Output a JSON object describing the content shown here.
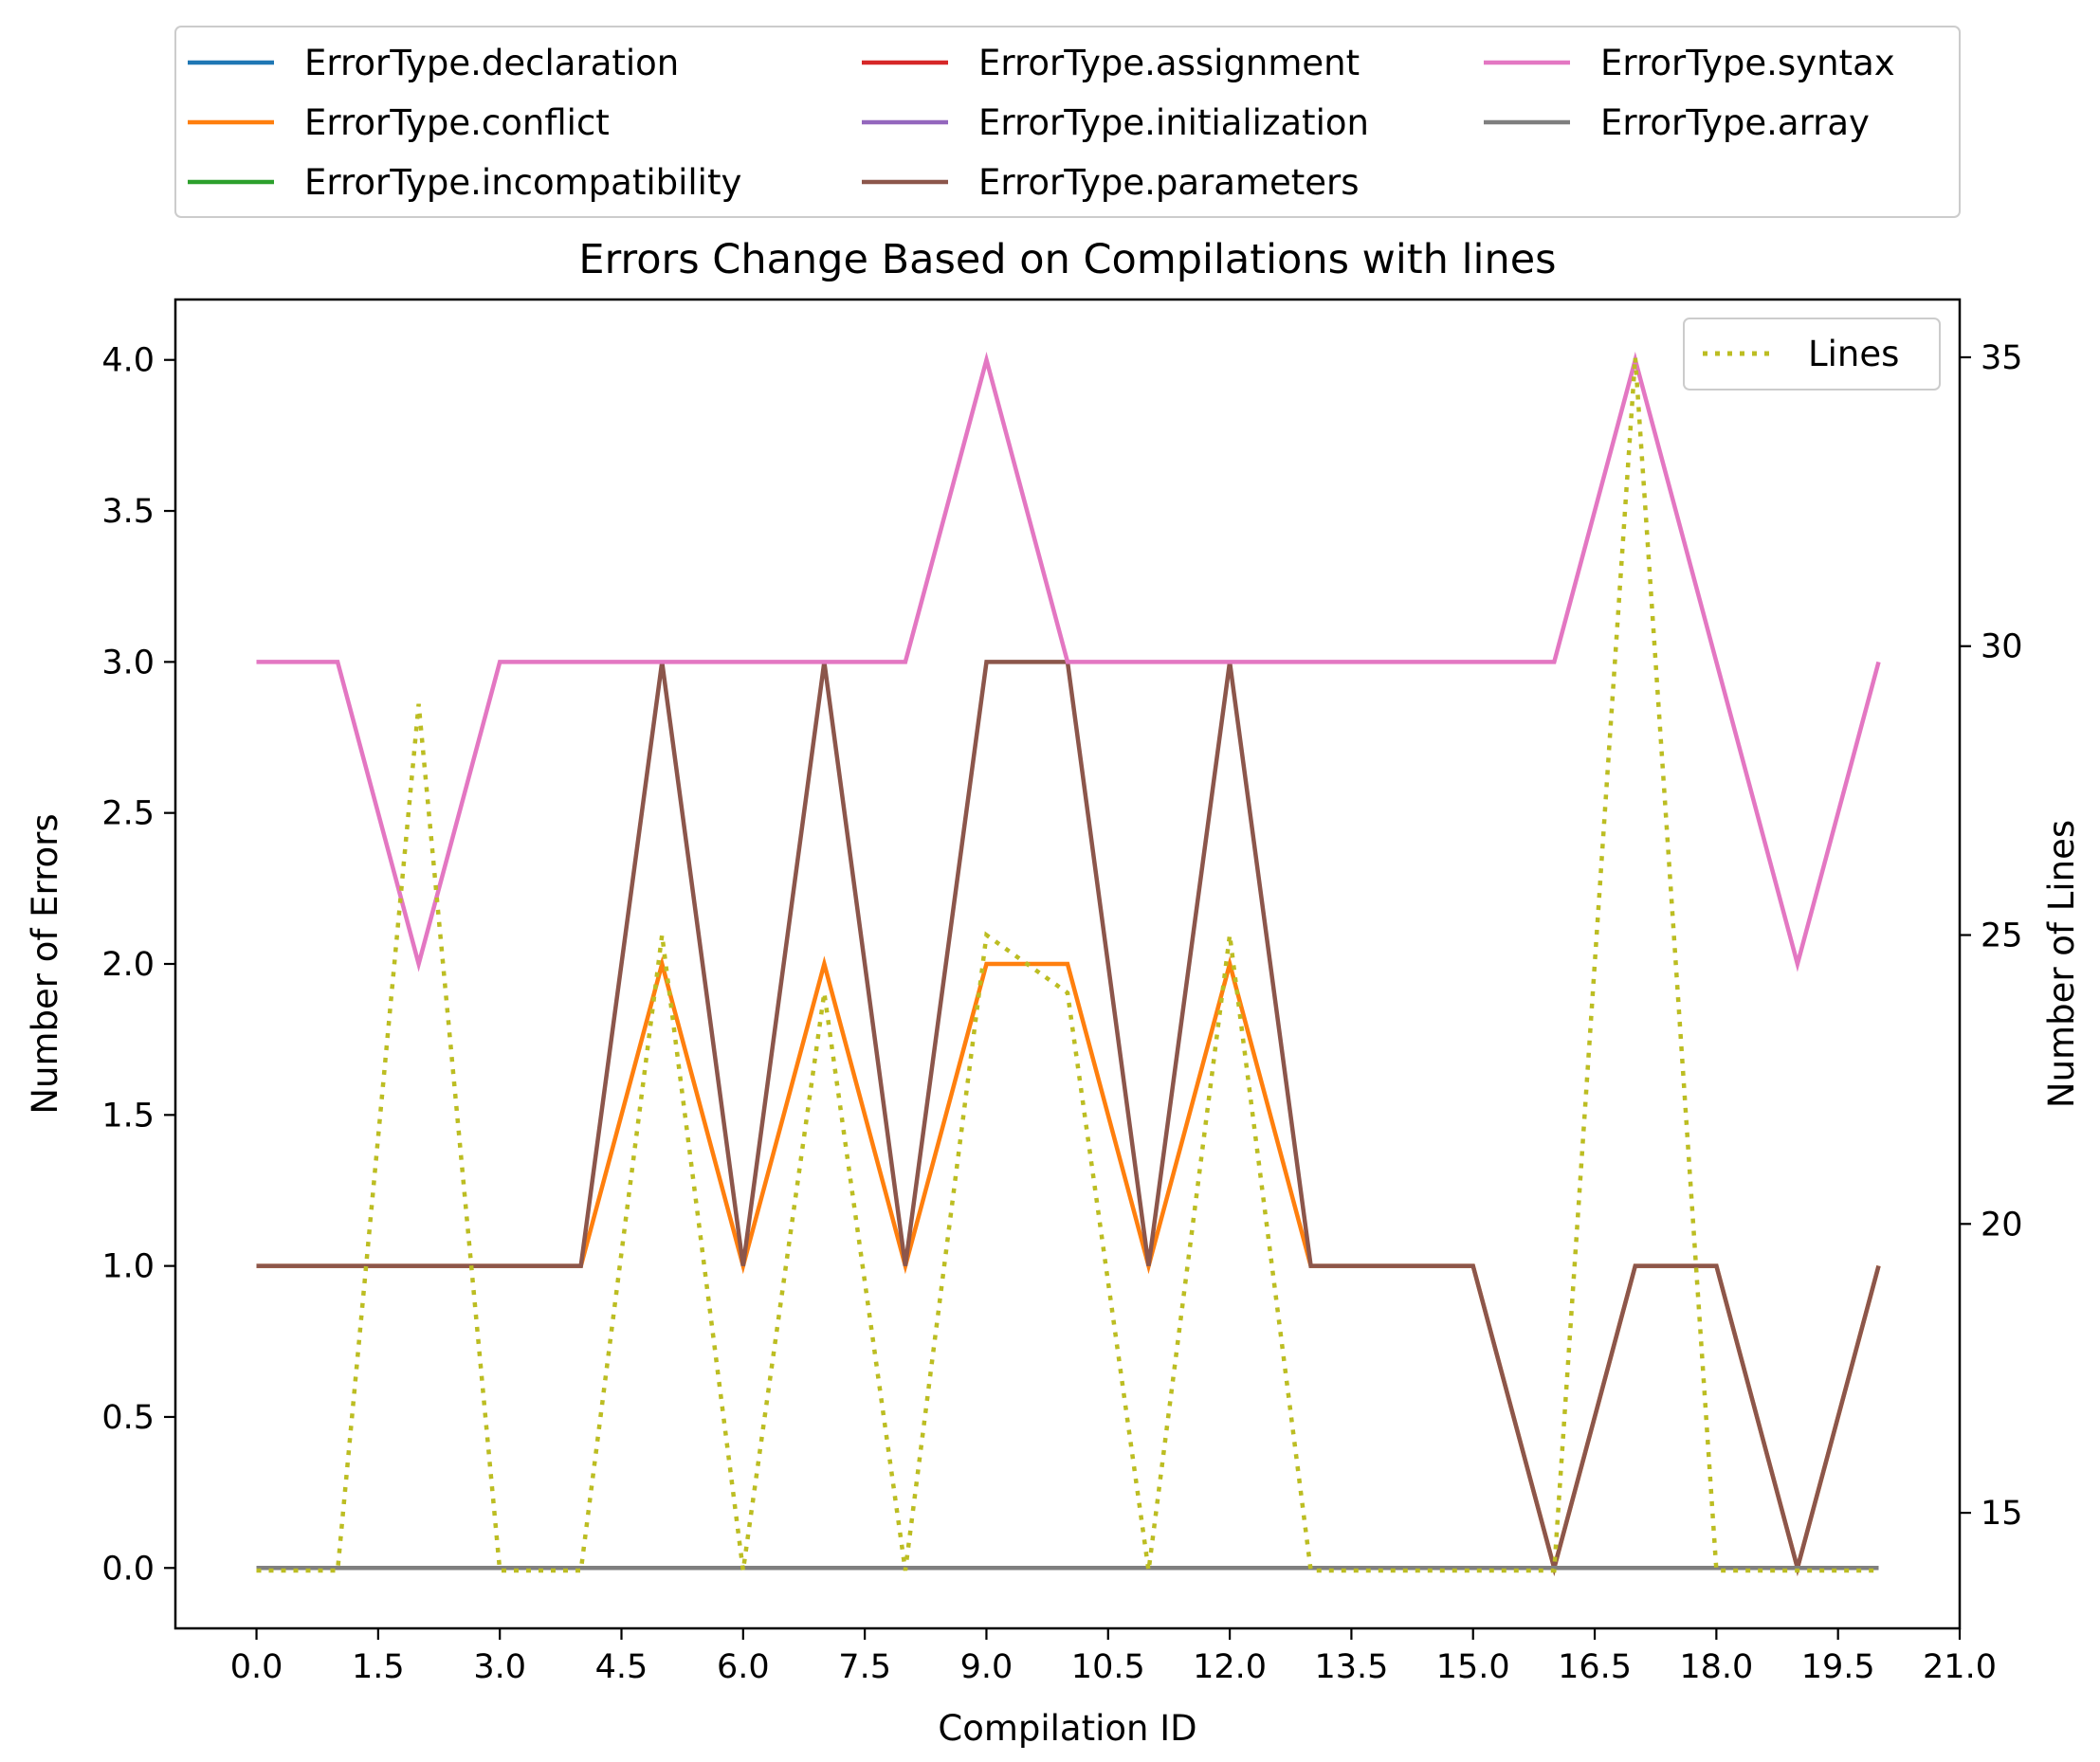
{
  "chart_data": {
    "type": "line",
    "title": "Errors Change Based on Compilations with lines",
    "xlabel": "Compilation ID",
    "ylabel": "Number of Errors",
    "y2label": "Number of Lines",
    "xlim": [
      -1.0,
      21.0
    ],
    "ylim": [
      -0.2,
      4.2
    ],
    "y2lim": [
      13.0,
      36.0
    ],
    "xticks": [
      0.0,
      1.5,
      3.0,
      4.5,
      6.0,
      7.5,
      9.0,
      10.5,
      12.0,
      13.5,
      15.0,
      16.5,
      18.0,
      19.5,
      21.0
    ],
    "xtick_labels": [
      "0.0",
      "1.5",
      "3.0",
      "4.5",
      "6.0",
      "7.5",
      "9.0",
      "10.5",
      "12.0",
      "13.5",
      "15.0",
      "16.5",
      "18.0",
      "19.5",
      "21.0"
    ],
    "yticks": [
      0.0,
      0.5,
      1.0,
      1.5,
      2.0,
      2.5,
      3.0,
      3.5,
      4.0
    ],
    "ytick_labels": [
      "0.0",
      "0.5",
      "1.0",
      "1.5",
      "2.0",
      "2.5",
      "3.0",
      "3.5",
      "4.0"
    ],
    "y2ticks": [
      15,
      20,
      25,
      30,
      35
    ],
    "y2tick_labels": [
      "15",
      "20",
      "25",
      "30",
      "35"
    ],
    "legend_placement": "above plot, 3 columns",
    "x": [
      0,
      1,
      2,
      3,
      4,
      5,
      6,
      7,
      8,
      9,
      10,
      11,
      12,
      13,
      14,
      15,
      16,
      17,
      18,
      19,
      20
    ],
    "series": [
      {
        "name": "ErrorType.declaration",
        "color": "#1f77b4",
        "values": [
          0,
          0,
          0,
          0,
          0,
          0,
          0,
          0,
          0,
          0,
          0,
          0,
          0,
          0,
          0,
          0,
          0,
          0,
          0,
          0,
          0
        ]
      },
      {
        "name": "ErrorType.conflict",
        "color": "#ff7f0e",
        "values": [
          1,
          1,
          1,
          1,
          1,
          2,
          1,
          2,
          1,
          2,
          2,
          1,
          2,
          1,
          1,
          1,
          0,
          1,
          1,
          0,
          1
        ]
      },
      {
        "name": "ErrorType.incompatibility",
        "color": "#2ca02c",
        "values": [
          0,
          0,
          0,
          0,
          0,
          0,
          0,
          0,
          0,
          0,
          0,
          0,
          0,
          0,
          0,
          0,
          0,
          0,
          0,
          0,
          0
        ]
      },
      {
        "name": "ErrorType.assignment",
        "color": "#d62728",
        "values": [
          0,
          0,
          0,
          0,
          0,
          0,
          0,
          0,
          0,
          0,
          0,
          0,
          0,
          0,
          0,
          0,
          0,
          0,
          0,
          0,
          0
        ]
      },
      {
        "name": "ErrorType.initialization",
        "color": "#9467bd",
        "values": [
          0,
          0,
          0,
          0,
          0,
          0,
          0,
          0,
          0,
          0,
          0,
          0,
          0,
          0,
          0,
          0,
          0,
          0,
          0,
          0,
          0
        ]
      },
      {
        "name": "ErrorType.parameters",
        "color": "#8c564b",
        "values": [
          1,
          1,
          1,
          1,
          1,
          3,
          1,
          3,
          1,
          3,
          3,
          1,
          3,
          1,
          1,
          1,
          0,
          1,
          1,
          0,
          1
        ]
      },
      {
        "name": "ErrorType.syntax",
        "color": "#e377c2",
        "values": [
          3,
          3,
          2,
          3,
          3,
          3,
          3,
          3,
          3,
          4,
          3,
          3,
          3,
          3,
          3,
          3,
          3,
          4,
          3,
          2,
          3
        ]
      },
      {
        "name": "ErrorType.array",
        "color": "#7f7f7f",
        "values": [
          0,
          0,
          0,
          0,
          0,
          0,
          0,
          0,
          0,
          0,
          0,
          0,
          0,
          0,
          0,
          0,
          0,
          0,
          0,
          0,
          0
        ]
      }
    ],
    "secondary_series": {
      "name": "Lines",
      "color": "#bcbd22",
      "style": "dotted",
      "values": [
        14,
        14,
        29,
        14,
        14,
        25,
        14,
        24,
        14,
        25,
        24,
        14,
        25,
        14,
        14,
        14,
        14,
        35,
        14,
        14,
        14
      ]
    }
  }
}
